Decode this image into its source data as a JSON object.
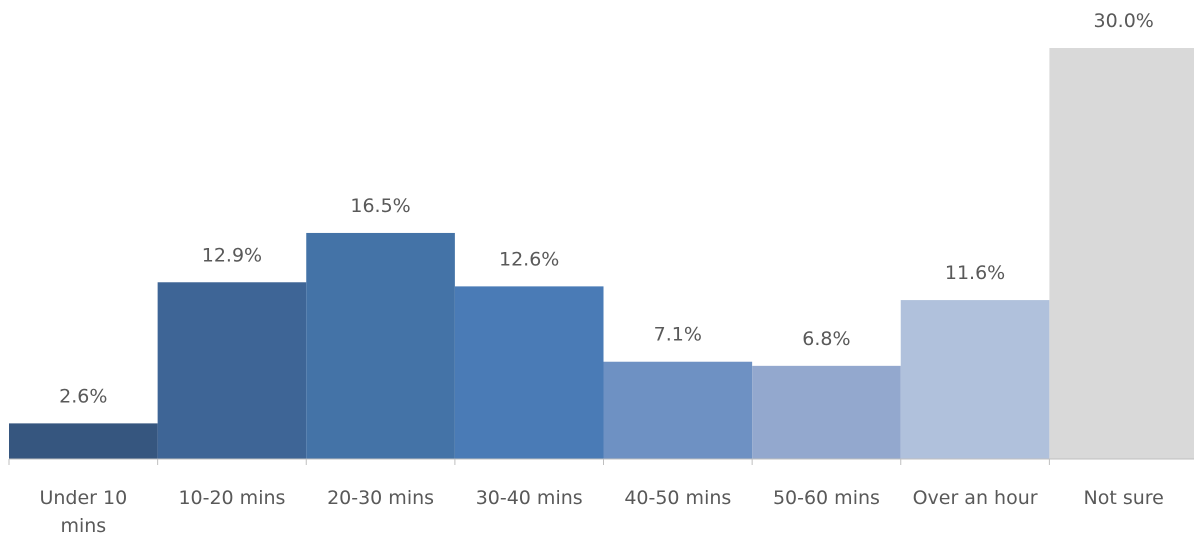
{
  "chart_data": {
    "type": "bar",
    "categories": [
      [
        "Under 10",
        "mins"
      ],
      [
        "10-20 mins"
      ],
      [
        "20-30 mins"
      ],
      [
        "30-40 mins"
      ],
      [
        "40-50 mins"
      ],
      [
        "50-60 mins"
      ],
      [
        "Over an hour"
      ],
      [
        "Not sure"
      ]
    ],
    "values": [
      2.6,
      12.9,
      16.5,
      12.6,
      7.1,
      6.8,
      11.6,
      30.0
    ],
    "data_labels": [
      "2.6%",
      "12.9%",
      "16.5%",
      "12.6%",
      "7.1%",
      "6.8%",
      "11.6%",
      "30.0%"
    ],
    "colors": [
      "#36567f",
      "#3e6596",
      "#4473a7",
      "#4a7bb6",
      "#6e91c3",
      "#93a8ce",
      "#b0c1dc",
      "#d9d9d9"
    ],
    "axis_color": "#bfbfbf",
    "label_color": "#595959",
    "ylim": [
      0,
      30
    ],
    "grid": false,
    "legend": "none"
  }
}
